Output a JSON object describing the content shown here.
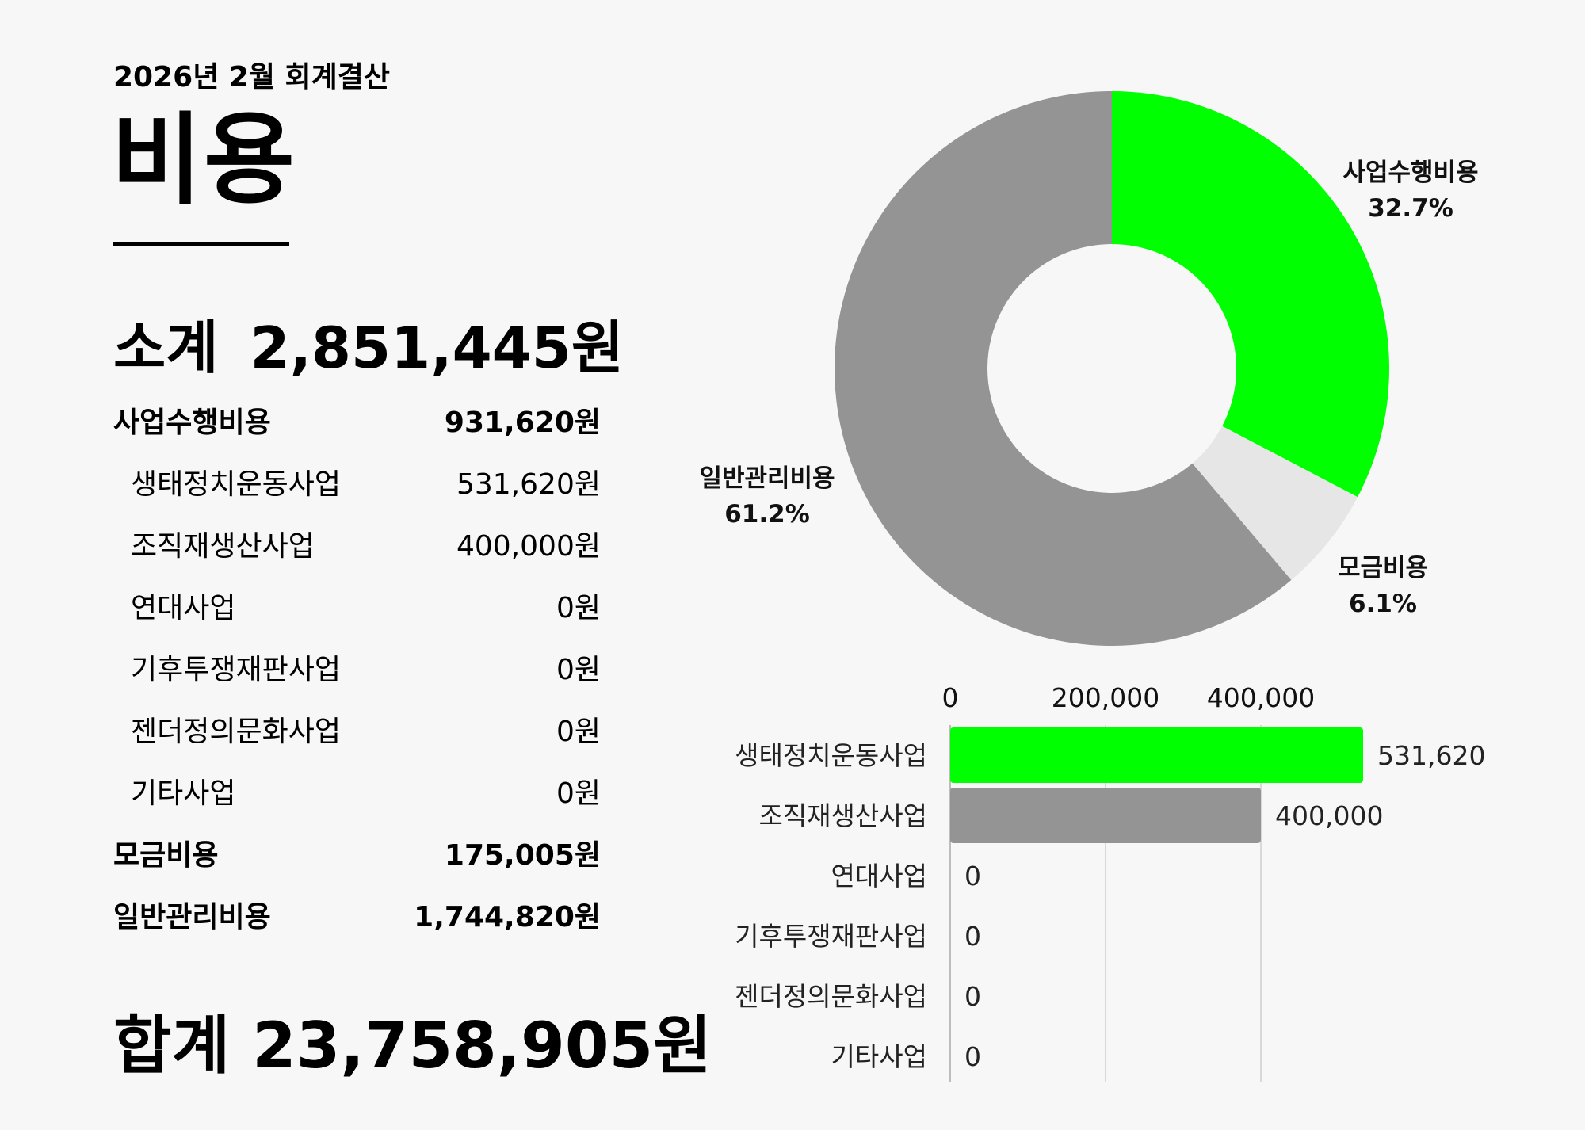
{
  "header": {
    "period": "2026년 2월 회계결산",
    "title": "비용"
  },
  "subtotal": {
    "label": "소계",
    "value": "2,851,445원"
  },
  "rows": [
    {
      "label": "사업수행비용",
      "value": "931,620원",
      "level": "major"
    },
    {
      "label": "생태정치운동사업",
      "value": "531,620원",
      "level": "minor"
    },
    {
      "label": "조직재생산사업",
      "value": "400,000원",
      "level": "minor"
    },
    {
      "label": "연대사업",
      "value": "0원",
      "level": "minor"
    },
    {
      "label": "기후투쟁재판사업",
      "value": "0원",
      "level": "minor"
    },
    {
      "label": "젠더정의문화사업",
      "value": "0원",
      "level": "minor"
    },
    {
      "label": "기타사업",
      "value": "0원",
      "level": "minor"
    },
    {
      "label": "모금비용",
      "value": "175,005원",
      "level": "major"
    },
    {
      "label": "일반관리비용",
      "value": "1,744,820원",
      "level": "major"
    }
  ],
  "total": {
    "label": "합계",
    "value": "23,758,905원"
  },
  "chart_data": [
    {
      "type": "pie",
      "variant": "donut",
      "slices": [
        {
          "name": "사업수행비용",
          "value": 931620,
          "percent_label": "32.7%",
          "color": "#00ff00"
        },
        {
          "name": "모금비용",
          "value": 175005,
          "percent_label": "6.1%",
          "color": "#e6e6e6"
        },
        {
          "name": "일반관리비용",
          "value": 1744820,
          "percent_label": "61.2%",
          "color": "#949494"
        }
      ]
    },
    {
      "type": "bar",
      "orientation": "horizontal",
      "categories": [
        "생태정치운동사업",
        "조직재생산사업",
        "연대사업",
        "기후투쟁재판사업",
        "젠더정의문화사업",
        "기타사업"
      ],
      "values": [
        531620,
        400000,
        0,
        0,
        0,
        0
      ],
      "value_labels": [
        "531,620",
        "400,000",
        "0",
        "0",
        "0",
        "0"
      ],
      "colors": [
        "#00ff00",
        "#949494",
        "#949494",
        "#949494",
        "#949494",
        "#949494"
      ],
      "xticks": [
        0,
        200000,
        400000
      ],
      "xtick_labels": [
        "0",
        "200,000",
        "400,000"
      ],
      "xlim": [
        0,
        531620
      ],
      "axis_position": "top",
      "grid": true
    }
  ]
}
